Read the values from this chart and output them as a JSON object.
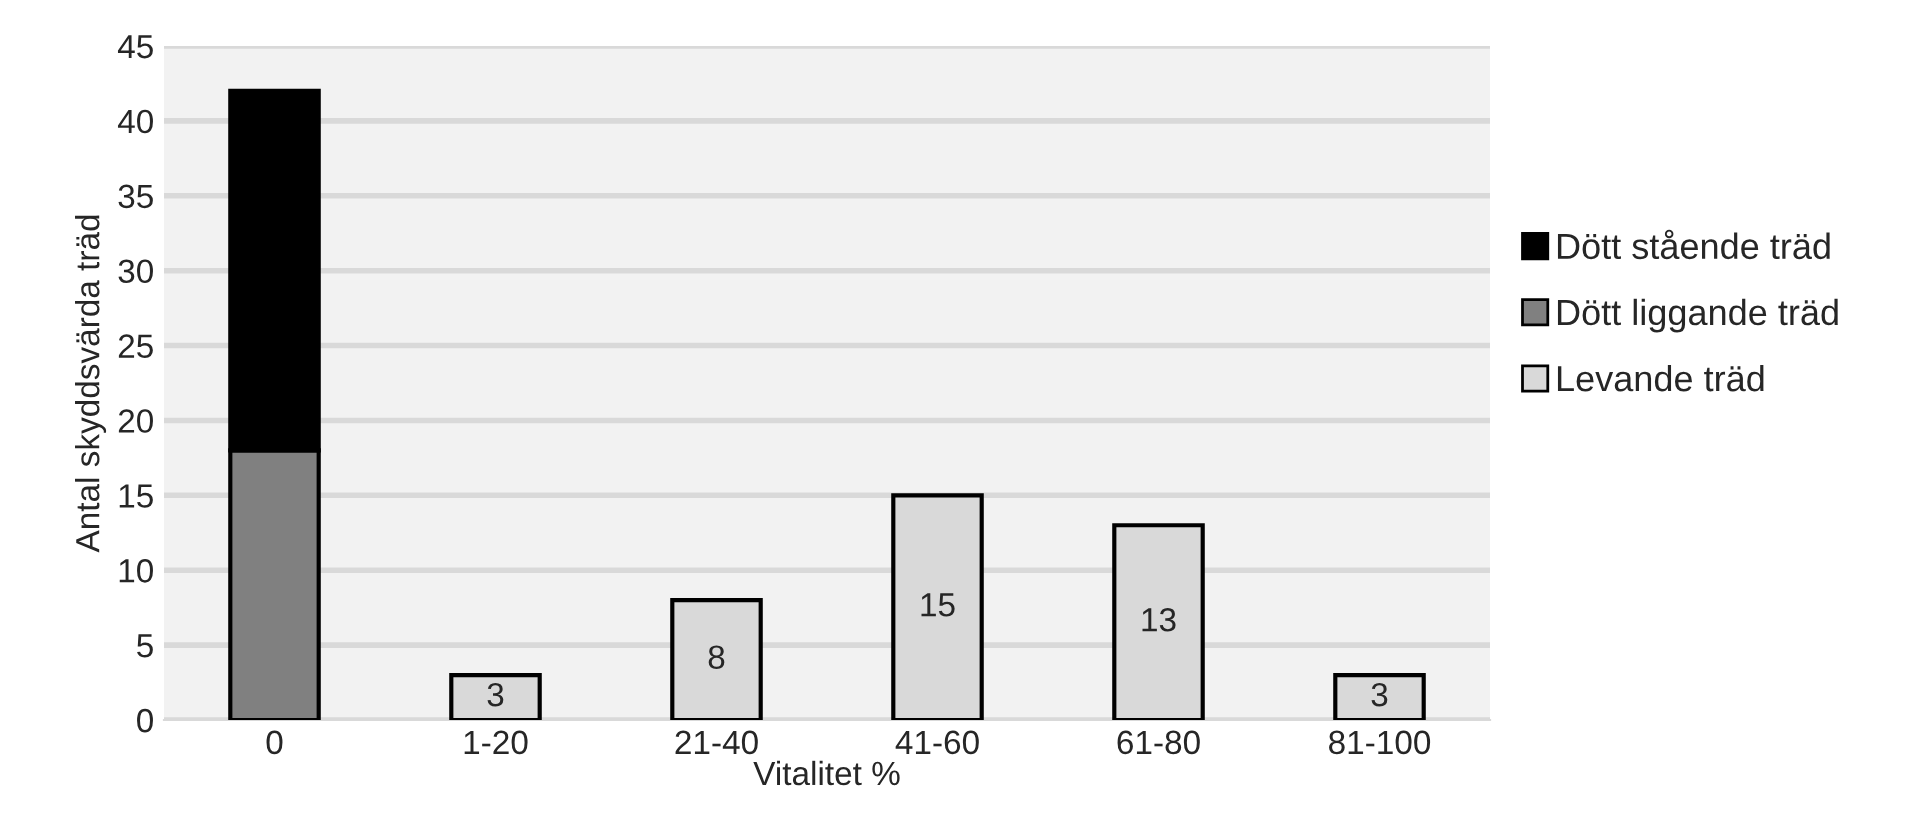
{
  "chart_data": {
    "type": "bar",
    "xlabel": "Vitalitet %",
    "ylabel": "Antal skyddsvärda träd",
    "categories": [
      "0",
      "1-20",
      "21-40",
      "41-60",
      "61-80",
      "81-100"
    ],
    "stacked": true,
    "series": [
      {
        "name": "Levande träd",
        "color": "#d9d9d9",
        "values": [
          null,
          3,
          8,
          15,
          13,
          3
        ],
        "value_labels": [
          null,
          "3",
          "8",
          "15",
          "13",
          "3"
        ]
      },
      {
        "name": "Dött liggande träd",
        "color": "#808080",
        "values": [
          18,
          null,
          null,
          null,
          null,
          null
        ]
      },
      {
        "name": "Dött stående träd",
        "color": "#000000",
        "values": [
          24,
          null,
          null,
          null,
          null,
          null
        ]
      }
    ],
    "ylim": [
      0,
      45
    ],
    "yticks": [
      0,
      5,
      10,
      15,
      20,
      25,
      30,
      35,
      40,
      45
    ],
    "grid": "y",
    "legend": "right"
  }
}
